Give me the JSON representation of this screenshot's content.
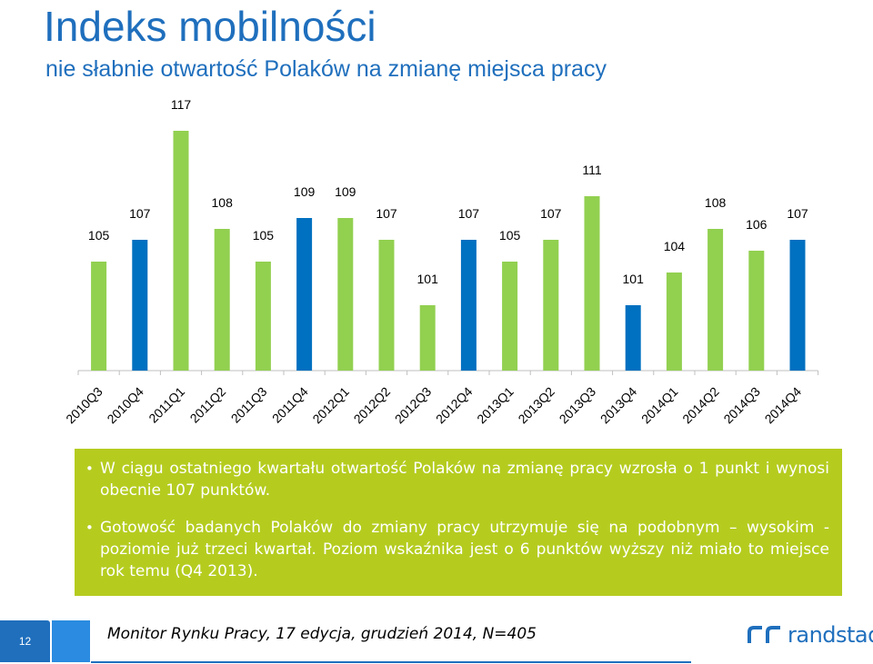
{
  "header": {
    "title": "Indeks mobilności",
    "subtitle": "nie słabnie otwartość Polaków na zmianę miejsca pracy"
  },
  "colors": {
    "primary_blue": "#1f6fbd",
    "bar_green": "#92d050",
    "bar_blue": "#0070c0",
    "panel_green": "#b5cc1f"
  },
  "chart_data": {
    "type": "bar",
    "title": "",
    "xlabel": "",
    "ylabel": "",
    "ylim": [
      95,
      117
    ],
    "grid": false,
    "legend": "none",
    "categories": [
      "2010Q3",
      "2010Q4",
      "2011Q1",
      "2011Q2",
      "2011Q3",
      "2011Q4",
      "2012Q1",
      "2012Q2",
      "2012Q3",
      "2012Q4",
      "2013Q1",
      "2013Q2",
      "2013Q3",
      "2013Q4",
      "2014Q1",
      "2014Q2",
      "2014Q3",
      "2014Q4"
    ],
    "values": [
      105,
      107,
      117,
      108,
      105,
      109,
      109,
      107,
      101,
      107,
      105,
      107,
      111,
      101,
      104,
      108,
      106,
      107
    ],
    "highlight_q4": [
      false,
      true,
      false,
      false,
      false,
      true,
      false,
      false,
      false,
      true,
      false,
      false,
      false,
      true,
      false,
      false,
      false,
      true
    ]
  },
  "notes": {
    "bullet1": "W ciągu ostatniego kwartału otwartość Polaków na zmianę pracy wzrosła o 1 punkt i wynosi obecnie 107 punktów.",
    "bullet2": "Gotowość badanych Polaków do zmiany pracy utrzymuje się na podobnym – wysokim - poziomie już trzeci kwartał. Poziom wskaźnika jest o 6 punktów wyższy niż miało to miejsce rok temu (Q4 2013)."
  },
  "footer": {
    "page_number": "12",
    "source": "Monitor Rynku Pracy, 17 edycja, grudzień 2014, N=405",
    "logo_text": "randstad"
  }
}
